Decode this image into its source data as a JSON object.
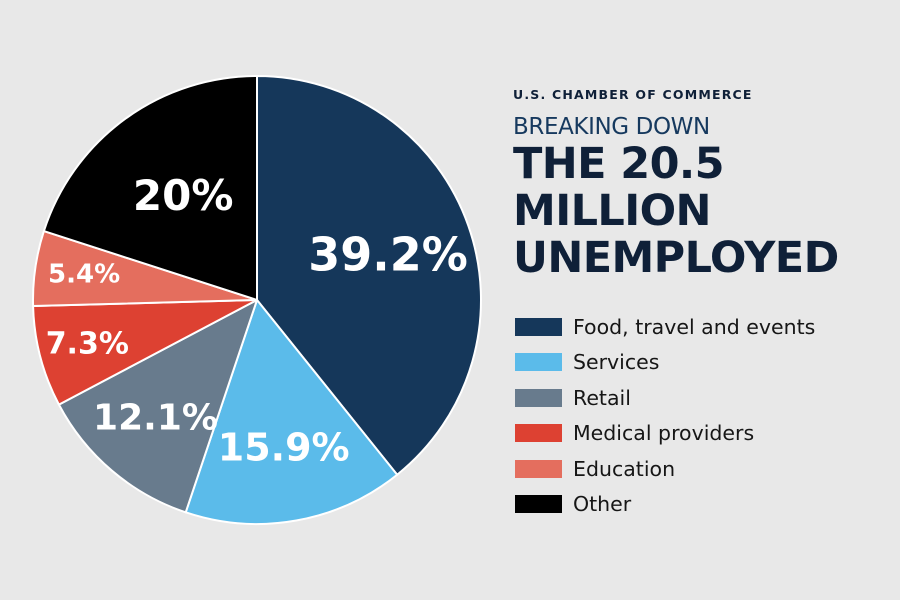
{
  "header": {
    "organization": "U.S. CHAMBER OF COMMERCE",
    "kicker": "BREAKING DOWN",
    "title_lines": [
      "THE 20.5",
      "MILLION",
      "UNEMPLOYED"
    ]
  },
  "chart_data": {
    "type": "pie",
    "title": "BREAKING DOWN THE 20.5 MILLION UNEMPLOYED",
    "start_position": "12 o'clock, clockwise",
    "legend_position": "right",
    "slices": [
      {
        "name": "Food, travel and events",
        "value": 39.2,
        "label": "39.2%",
        "color": "#15375a"
      },
      {
        "name": "Services",
        "value": 15.9,
        "label": "15.9%",
        "color": "#5bbbea"
      },
      {
        "name": "Retail",
        "value": 12.1,
        "label": "12.1%",
        "color": "#687b8d"
      },
      {
        "name": "Medical providers",
        "value": 7.3,
        "label": "7.3%",
        "color": "#dd4132"
      },
      {
        "name": "Education",
        "value": 5.4,
        "label": "5.4%",
        "color": "#e46e5e"
      },
      {
        "name": "Other",
        "value": 20,
        "label": "20%",
        "color": "#000000"
      }
    ]
  }
}
